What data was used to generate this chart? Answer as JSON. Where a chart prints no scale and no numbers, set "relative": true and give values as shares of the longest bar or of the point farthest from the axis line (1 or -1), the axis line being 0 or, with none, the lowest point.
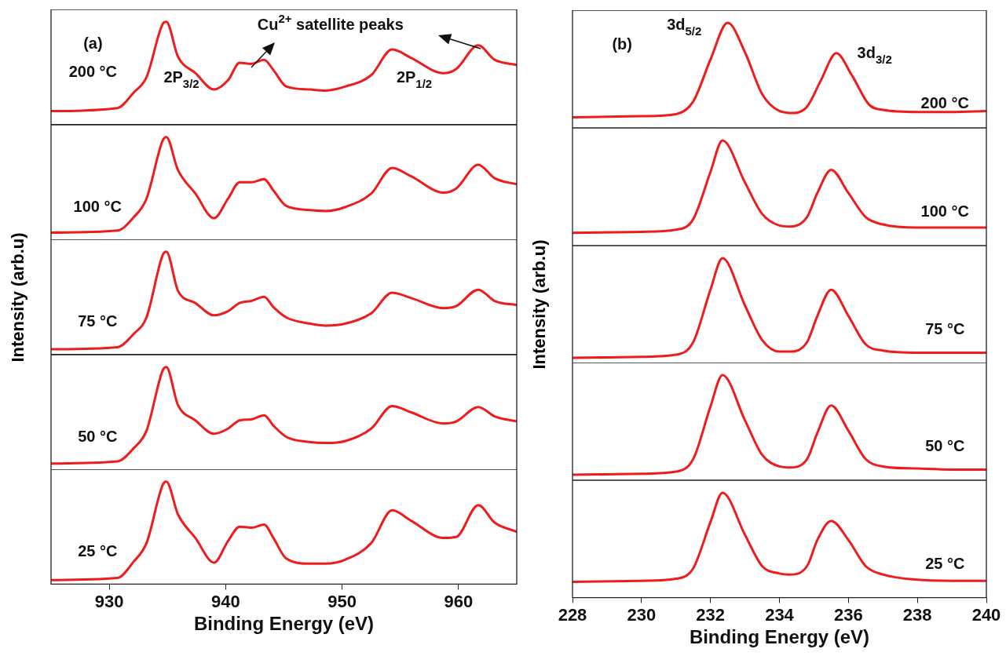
{
  "chart_data": [
    {
      "type": "line",
      "x": [
        925,
        930.7,
        932.1,
        933.2,
        934.6,
        934.9,
        935.9,
        937.4,
        939.0,
        940.2,
        941.2,
        942.2,
        943.3,
        944.1,
        945.2,
        947.2,
        948.6,
        950.3,
        952.5,
        954.3,
        955.9,
        958.7,
        959.8,
        961.7,
        963.1,
        965
      ],
      "relative": true,
      "xlim": [
        925,
        965
      ],
      "xticks": [
        930,
        940,
        950,
        960
      ],
      "tick_labels": false,
      "series": [
        {
          "color": "#ee1c1c",
          "values": [
            0.13,
            0.16,
            0.31,
            0.46,
            0.98,
            1,
            0.66,
            0.5,
            0.34,
            0.43,
            0.6,
            0.59,
            0.63,
            0.53,
            0.37,
            0.34,
            0.33,
            0.37,
            0.48,
            0.73,
            0.65,
            0.5,
            0.54,
            0.77,
            0.63,
            0.58
          ]
        }
      ],
      "annotations": [
        "(a)",
        "200 °C",
        "2P$_{3/2}$",
        "Cu$^{2+}$ satellite peaks",
        "2P$_{1/2}$"
      ]
    },
    {
      "type": "line",
      "x": [
        925,
        930.7,
        932.1,
        933.2,
        934.6,
        934.9,
        935.9,
        937.4,
        939.0,
        940.2,
        941.2,
        942.2,
        943.3,
        944.1,
        945.2,
        947.2,
        948.6,
        950.3,
        952.5,
        954.3,
        955.9,
        958.7,
        959.8,
        961.7,
        963.1,
        965
      ],
      "relative": true,
      "xlim": [
        925,
        965
      ],
      "xticks": [
        930,
        940,
        950,
        960
      ],
      "tick_labels": false,
      "series": [
        {
          "color": "#ee1c1c",
          "values": [
            0.07,
            0.09,
            0.22,
            0.4,
            0.97,
            1,
            0.68,
            0.45,
            0.21,
            0.4,
            0.56,
            0.56,
            0.59,
            0.48,
            0.33,
            0.29,
            0.28,
            0.32,
            0.45,
            0.7,
            0.62,
            0.46,
            0.5,
            0.73,
            0.6,
            0.54
          ]
        }
      ],
      "annotations": [
        "100 °C"
      ]
    },
    {
      "type": "line",
      "x": [
        925,
        930.7,
        932.1,
        933.2,
        934.6,
        934.9,
        935.9,
        937.4,
        939.0,
        940.2,
        941.2,
        942.2,
        943.3,
        944.1,
        945.2,
        947.2,
        948.6,
        950.3,
        952.5,
        954.3,
        955.9,
        958.7,
        959.8,
        961.7,
        963.1,
        965
      ],
      "relative": true,
      "xlim": [
        925,
        965
      ],
      "xticks": [
        930,
        940,
        950,
        960
      ],
      "tick_labels": false,
      "ylabel": "Intensity (arb.u)",
      "series": [
        {
          "color": "#ee1c1c",
          "values": [
            0.05,
            0.07,
            0.2,
            0.36,
            0.97,
            1,
            0.62,
            0.5,
            0.38,
            0.42,
            0.5,
            0.52,
            0.56,
            0.46,
            0.36,
            0.3,
            0.28,
            0.3,
            0.4,
            0.6,
            0.55,
            0.45,
            0.47,
            0.63,
            0.52,
            0.48
          ]
        }
      ],
      "annotations": [
        "75 °C"
      ]
    },
    {
      "type": "line",
      "x": [
        925,
        930.7,
        932.1,
        933.2,
        934.6,
        934.9,
        935.9,
        937.4,
        939.0,
        940.2,
        941.2,
        942.2,
        943.3,
        944.1,
        945.2,
        947.2,
        948.6,
        950.3,
        952.5,
        954.3,
        955.9,
        958.7,
        959.8,
        961.7,
        963.1,
        965
      ],
      "relative": true,
      "xlim": [
        925,
        965
      ],
      "xticks": [
        930,
        940,
        950,
        960
      ],
      "tick_labels": false,
      "series": [
        {
          "color": "#ee1c1c",
          "values": [
            0.06,
            0.08,
            0.21,
            0.38,
            0.97,
            1,
            0.63,
            0.48,
            0.35,
            0.4,
            0.48,
            0.49,
            0.53,
            0.43,
            0.32,
            0.27,
            0.26,
            0.28,
            0.4,
            0.62,
            0.56,
            0.45,
            0.47,
            0.61,
            0.52,
            0.47
          ]
        }
      ],
      "annotations": [
        "50 °C"
      ]
    },
    {
      "type": "line",
      "x": [
        925,
        930.7,
        932.1,
        933.2,
        934.6,
        934.9,
        935.9,
        937.4,
        939.0,
        940.2,
        941.2,
        942.2,
        943.3,
        944.1,
        945.2,
        947.2,
        948.6,
        950.3,
        952.5,
        954.3,
        955.9,
        958.7,
        959.8,
        961.7,
        963.1,
        965
      ],
      "relative": true,
      "xlim": [
        925,
        965
      ],
      "xticks": [
        930,
        940,
        950,
        960
      ],
      "tick_labels": "x",
      "xlabel": "Binding Energy (eV)",
      "series": [
        {
          "color": "#ee1c1c",
          "values": [
            0.04,
            0.06,
            0.22,
            0.4,
            0.97,
            1,
            0.68,
            0.45,
            0.21,
            0.42,
            0.56,
            0.55,
            0.58,
            0.45,
            0.25,
            0.2,
            0.2,
            0.24,
            0.4,
            0.72,
            0.62,
            0.45,
            0.46,
            0.77,
            0.6,
            0.51
          ]
        }
      ],
      "annotations": [
        "25 °C"
      ]
    },
    {
      "type": "line",
      "x": [
        228,
        230,
        231,
        231.5,
        232,
        232.5,
        233,
        233.5,
        234,
        234.4,
        234.8,
        235.2,
        235.65,
        236.1,
        236.6,
        237,
        238,
        239,
        240
      ],
      "relative": true,
      "xlim": [
        228,
        240
      ],
      "xticks": [
        228,
        230,
        232,
        234,
        236,
        238,
        240
      ],
      "tick_labels": false,
      "series": [
        {
          "color": "#ee1c1c",
          "values": [
            0.1,
            0.11,
            0.13,
            0.25,
            0.65,
            1,
            0.72,
            0.32,
            0.16,
            0.14,
            0.2,
            0.45,
            0.71,
            0.5,
            0.22,
            0.17,
            0.15,
            0.15,
            0.16
          ]
        }
      ],
      "annotations": [
        "(b)",
        "3d$_{5/2}$",
        "3d$_{3/2}$",
        "200 °C"
      ]
    },
    {
      "type": "line",
      "x": [
        228,
        230,
        231,
        231.5,
        232,
        232.35,
        233,
        233.5,
        234,
        234.3,
        234.8,
        235.1,
        235.5,
        236,
        236.5,
        237,
        238,
        239,
        240
      ],
      "relative": true,
      "xlim": [
        228,
        240
      ],
      "xticks": [
        228,
        230,
        232,
        234,
        236,
        238,
        240
      ],
      "tick_labels": false,
      "series": [
        {
          "color": "#ee1c1c",
          "values": [
            0.12,
            0.13,
            0.15,
            0.25,
            0.7,
            1,
            0.6,
            0.3,
            0.19,
            0.18,
            0.27,
            0.5,
            0.72,
            0.5,
            0.27,
            0.2,
            0.17,
            0.17,
            0.17
          ]
        }
      ],
      "annotations": [
        "100 °C"
      ]
    },
    {
      "type": "line",
      "x": [
        228,
        230,
        231,
        231.5,
        232,
        232.35,
        233,
        233.5,
        234,
        234.3,
        234.8,
        235.1,
        235.5,
        236,
        236.5,
        237,
        238,
        239,
        240
      ],
      "relative": true,
      "xlim": [
        228,
        240
      ],
      "xticks": [
        228,
        230,
        232,
        234,
        236,
        238,
        240
      ],
      "tick_labels": false,
      "ylabel": "Intensity (arb.u)",
      "series": [
        {
          "color": "#ee1c1c",
          "values": [
            0.05,
            0.06,
            0.08,
            0.2,
            0.7,
            1,
            0.55,
            0.22,
            0.11,
            0.11,
            0.2,
            0.45,
            0.7,
            0.45,
            0.18,
            0.12,
            0.1,
            0.1,
            0.1
          ]
        }
      ],
      "annotations": [
        "75 °C"
      ]
    },
    {
      "type": "line",
      "x": [
        228,
        230,
        231,
        231.5,
        232,
        232.35,
        233,
        233.5,
        234,
        234.3,
        234.8,
        235.1,
        235.5,
        236,
        236.5,
        237,
        238,
        239,
        240
      ],
      "relative": true,
      "xlim": [
        228,
        240
      ],
      "xticks": [
        228,
        230,
        232,
        234,
        236,
        238,
        240
      ],
      "tick_labels": false,
      "series": [
        {
          "color": "#ee1c1c",
          "values": [
            0.05,
            0.06,
            0.08,
            0.2,
            0.7,
            1,
            0.57,
            0.24,
            0.13,
            0.12,
            0.2,
            0.45,
            0.71,
            0.47,
            0.2,
            0.13,
            0.11,
            0.1,
            0.1
          ]
        }
      ],
      "annotations": [
        "50 °C"
      ]
    },
    {
      "type": "line",
      "x": [
        228,
        230,
        231,
        231.5,
        232,
        232.35,
        233,
        233.5,
        234,
        234.3,
        234.8,
        235.1,
        235.5,
        236,
        236.5,
        237,
        238,
        239,
        240
      ],
      "relative": true,
      "xlim": [
        228,
        240
      ],
      "xticks": [
        228,
        230,
        232,
        234,
        236,
        238,
        240
      ],
      "tick_labels": "x",
      "xlabel": "Binding Energy (eV)",
      "series": [
        {
          "color": "#ee1c1c",
          "values": [
            0.15,
            0.16,
            0.18,
            0.28,
            0.72,
            1,
            0.6,
            0.3,
            0.23,
            0.22,
            0.3,
            0.55,
            0.73,
            0.55,
            0.3,
            0.22,
            0.17,
            0.16,
            0.16
          ]
        }
      ],
      "annotations": [
        "25 °C"
      ]
    }
  ]
}
